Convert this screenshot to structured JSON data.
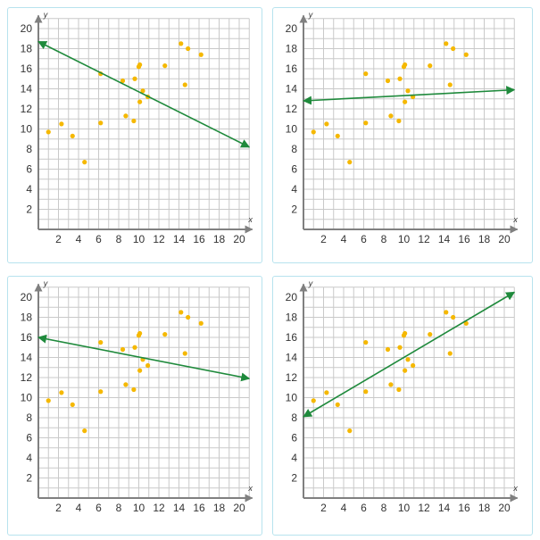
{
  "colors": {
    "grid": "#c9c9c9",
    "axis": "#808080",
    "points": "#f5b800",
    "line": "#1f8a3c",
    "card_border": "#b7e3ee"
  },
  "chart_data": [
    {
      "type": "scatter",
      "title": "",
      "xlabel": "x",
      "ylabel": "y",
      "xlim": [
        0,
        21
      ],
      "ylim": [
        0,
        21
      ],
      "x_ticks": [
        "2",
        "4",
        "6",
        "8",
        "10",
        "12",
        "14",
        "16",
        "18",
        "20"
      ],
      "y_ticks": [
        "2",
        "4",
        "6",
        "8",
        "10",
        "12",
        "14",
        "16",
        "18",
        "20"
      ],
      "grid": true,
      "points": [
        [
          1.0,
          9.7
        ],
        [
          2.3,
          10.5
        ],
        [
          3.4,
          9.3
        ],
        [
          4.6,
          6.7
        ],
        [
          6.2,
          15.5
        ],
        [
          6.2,
          10.6
        ],
        [
          8.4,
          14.8
        ],
        [
          8.7,
          11.3
        ],
        [
          9.5,
          10.8
        ],
        [
          9.6,
          15.0
        ],
        [
          10.0,
          16.2
        ],
        [
          10.1,
          16.4
        ],
        [
          10.1,
          12.7
        ],
        [
          10.4,
          13.8
        ],
        [
          10.9,
          13.2
        ],
        [
          12.6,
          16.3
        ],
        [
          14.2,
          18.5
        ],
        [
          14.6,
          14.4
        ],
        [
          14.9,
          18.0
        ],
        [
          16.2,
          17.4
        ]
      ],
      "trend_line": {
        "from": [
          0,
          18.7
        ],
        "to": [
          21,
          8.2
        ],
        "arrows": "both"
      }
    },
    {
      "type": "scatter",
      "title": "",
      "xlabel": "x",
      "ylabel": "y",
      "xlim": [
        0,
        21
      ],
      "ylim": [
        0,
        21
      ],
      "x_ticks": [
        "2",
        "4",
        "6",
        "8",
        "10",
        "12",
        "14",
        "16",
        "18",
        "20"
      ],
      "y_ticks": [
        "2",
        "4",
        "6",
        "8",
        "10",
        "12",
        "14",
        "16",
        "18",
        "20"
      ],
      "grid": true,
      "points": [
        [
          1.0,
          9.7
        ],
        [
          2.3,
          10.5
        ],
        [
          3.4,
          9.3
        ],
        [
          4.6,
          6.7
        ],
        [
          6.2,
          15.5
        ],
        [
          6.2,
          10.6
        ],
        [
          8.4,
          14.8
        ],
        [
          8.7,
          11.3
        ],
        [
          9.5,
          10.8
        ],
        [
          9.6,
          15.0
        ],
        [
          10.0,
          16.2
        ],
        [
          10.1,
          16.4
        ],
        [
          10.1,
          12.7
        ],
        [
          10.4,
          13.8
        ],
        [
          10.9,
          13.2
        ],
        [
          12.6,
          16.3
        ],
        [
          14.2,
          18.5
        ],
        [
          14.6,
          14.4
        ],
        [
          14.9,
          18.0
        ],
        [
          16.2,
          17.4
        ]
      ],
      "trend_line": {
        "from": [
          0,
          12.8
        ],
        "to": [
          21,
          13.9
        ],
        "arrows": "both"
      }
    },
    {
      "type": "scatter",
      "title": "",
      "xlabel": "x",
      "ylabel": "y",
      "xlim": [
        0,
        21
      ],
      "ylim": [
        0,
        21
      ],
      "x_ticks": [
        "2",
        "4",
        "6",
        "8",
        "10",
        "12",
        "14",
        "16",
        "18",
        "20"
      ],
      "y_ticks": [
        "2",
        "4",
        "6",
        "8",
        "10",
        "12",
        "14",
        "16",
        "18",
        "20"
      ],
      "grid": true,
      "points": [
        [
          1.0,
          9.7
        ],
        [
          2.3,
          10.5
        ],
        [
          3.4,
          9.3
        ],
        [
          4.6,
          6.7
        ],
        [
          6.2,
          15.5
        ],
        [
          6.2,
          10.6
        ],
        [
          8.4,
          14.8
        ],
        [
          8.7,
          11.3
        ],
        [
          9.5,
          10.8
        ],
        [
          9.6,
          15.0
        ],
        [
          10.0,
          16.2
        ],
        [
          10.1,
          16.4
        ],
        [
          10.1,
          12.7
        ],
        [
          10.4,
          13.8
        ],
        [
          10.9,
          13.2
        ],
        [
          12.6,
          16.3
        ],
        [
          14.2,
          18.5
        ],
        [
          14.6,
          14.4
        ],
        [
          14.9,
          18.0
        ],
        [
          16.2,
          17.4
        ]
      ],
      "trend_line": {
        "from": [
          0,
          16.0
        ],
        "to": [
          21,
          11.9
        ],
        "arrows": "both"
      }
    },
    {
      "type": "scatter",
      "title": "",
      "xlabel": "x",
      "ylabel": "y",
      "xlim": [
        0,
        21
      ],
      "ylim": [
        0,
        21
      ],
      "x_ticks": [
        "2",
        "4",
        "6",
        "8",
        "10",
        "12",
        "14",
        "16",
        "18",
        "20"
      ],
      "y_ticks": [
        "2",
        "4",
        "6",
        "8",
        "10",
        "12",
        "14",
        "16",
        "18",
        "20"
      ],
      "grid": true,
      "points": [
        [
          1.0,
          9.7
        ],
        [
          2.3,
          10.5
        ],
        [
          3.4,
          9.3
        ],
        [
          4.6,
          6.7
        ],
        [
          6.2,
          15.5
        ],
        [
          6.2,
          10.6
        ],
        [
          8.4,
          14.8
        ],
        [
          8.7,
          11.3
        ],
        [
          9.5,
          10.8
        ],
        [
          9.6,
          15.0
        ],
        [
          10.0,
          16.2
        ],
        [
          10.1,
          16.4
        ],
        [
          10.1,
          12.7
        ],
        [
          10.4,
          13.8
        ],
        [
          10.9,
          13.2
        ],
        [
          12.6,
          16.3
        ],
        [
          14.2,
          18.5
        ],
        [
          14.6,
          14.4
        ],
        [
          14.9,
          18.0
        ],
        [
          16.2,
          17.4
        ]
      ],
      "trend_line": {
        "from": [
          0,
          8.1
        ],
        "to": [
          21,
          20.5
        ],
        "arrows": "both"
      }
    }
  ]
}
